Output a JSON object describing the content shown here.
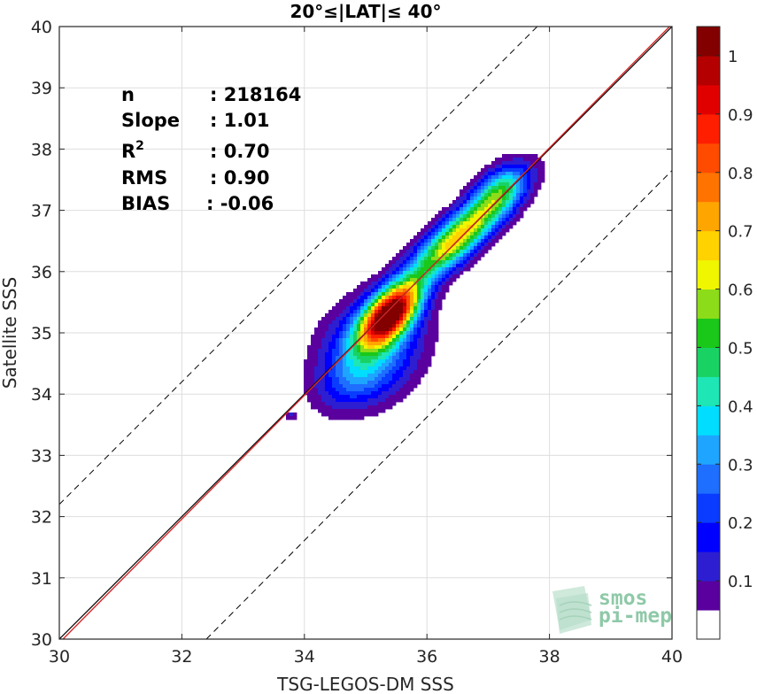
{
  "chart_data": {
    "type": "contour-density",
    "title": "20°≤|LAT|≤ 40°",
    "xlabel": "TSG-LEGOS-DM SSS",
    "ylabel": "Satellite SSS",
    "xlim": [
      30,
      40
    ],
    "ylim": [
      30,
      40
    ],
    "xticks": [
      "30",
      "32",
      "34",
      "36",
      "38",
      "40"
    ],
    "yticks": [
      "30",
      "31",
      "32",
      "33",
      "34",
      "35",
      "36",
      "37",
      "38",
      "39",
      "40"
    ],
    "grid": true,
    "stats": [
      {
        "label": "n",
        "value": ": 218164"
      },
      {
        "label": "Slope",
        "value": ": 1.01"
      },
      {
        "label": "R",
        "sup": "2",
        "value": ": 0.70"
      },
      {
        "label": "RMS",
        "value": ": 0.90"
      },
      {
        "label": "BIAS",
        "value": ": -0.06"
      }
    ],
    "identity_line": {
      "x": [
        30,
        40
      ],
      "y": [
        30,
        40
      ],
      "color": "#000000"
    },
    "fit_line": {
      "x": [
        30,
        40
      ],
      "y": [
        29.94,
        40.04
      ],
      "color": "#d62728"
    },
    "envelope_lines": [
      {
        "x": [
          30,
          37.8
        ],
        "y": [
          32.2,
          40
        ]
      },
      {
        "x": [
          32.4,
          40
        ],
        "y": [
          30,
          37.65
        ]
      }
    ],
    "density_levels": [
      0.05,
      0.1,
      0.15,
      0.2,
      0.25,
      0.3,
      0.35,
      0.4,
      0.45,
      0.5,
      0.55,
      0.6,
      0.65,
      0.7,
      0.75,
      0.8,
      0.85,
      0.9,
      0.95,
      1.0
    ],
    "density_peaks": [
      {
        "x": 35.4,
        "y": 35.3,
        "sx": 0.42,
        "sy": 0.22,
        "angle": 47,
        "a": 1.0
      },
      {
        "x": 36.5,
        "y": 36.55,
        "sx": 0.75,
        "sy": 0.22,
        "angle": 42,
        "a": 0.68
      },
      {
        "x": 35.1,
        "y": 34.75,
        "sx": 0.6,
        "sy": 0.48,
        "angle": 45,
        "a": 0.33
      },
      {
        "x": 37.2,
        "y": 37.35,
        "sx": 0.35,
        "sy": 0.22,
        "angle": 42,
        "a": 0.32
      },
      {
        "x": 34.8,
        "y": 34.2,
        "sx": 0.45,
        "sy": 0.3,
        "angle": 25,
        "a": 0.12
      },
      {
        "x": 33.78,
        "y": 33.65,
        "sx": 0.06,
        "sy": 0.05,
        "angle": 0,
        "a": 0.1
      }
    ],
    "colorbar": {
      "ticks": [
        "0.1",
        "0.2",
        "0.3",
        "0.4",
        "0.5",
        "0.6",
        "0.7",
        "0.8",
        "0.9",
        "1"
      ],
      "colors": [
        "#ffffff",
        "#5a009e",
        "#2d1ed2",
        "#0000ff",
        "#0a3cff",
        "#1e6eff",
        "#1ea5ff",
        "#00ddff",
        "#1ee6b4",
        "#19d264",
        "#19c819",
        "#8cdc19",
        "#f0f500",
        "#ffd200",
        "#ffa500",
        "#ff7300",
        "#ff4b00",
        "#ff1e00",
        "#e10000",
        "#b40000",
        "#820000"
      ]
    },
    "logo": {
      "line1": "smos",
      "line2": "pi-mep"
    }
  }
}
